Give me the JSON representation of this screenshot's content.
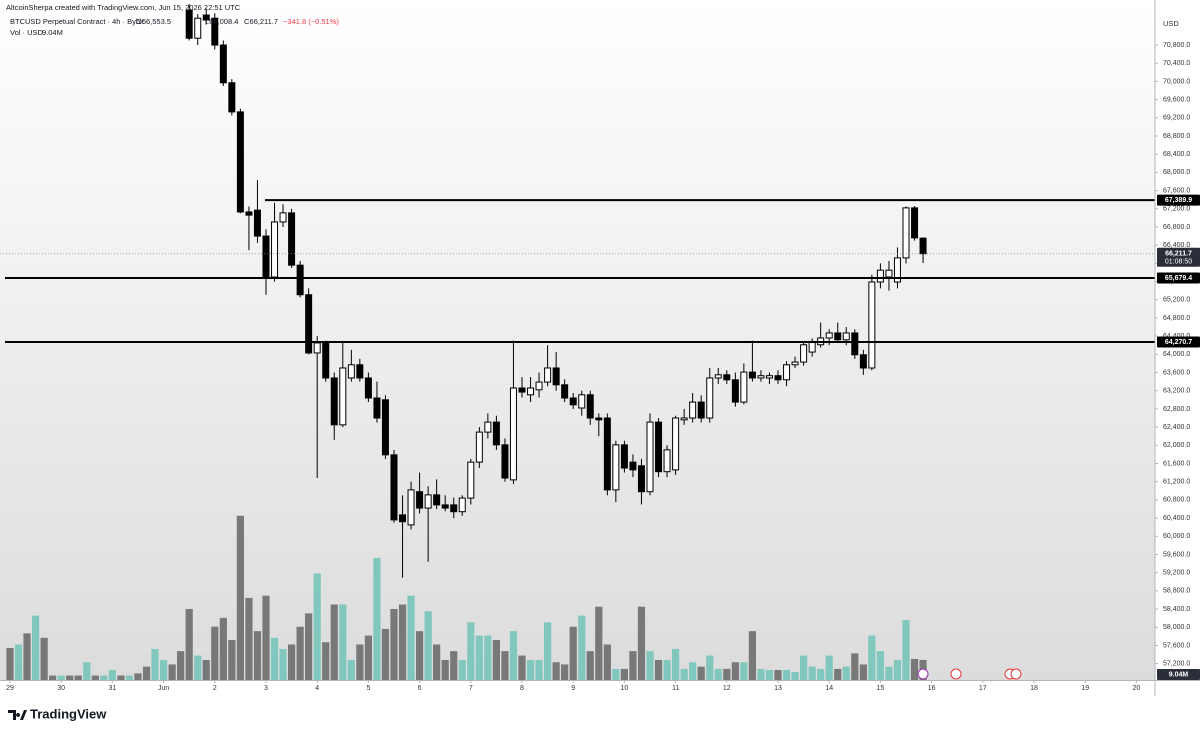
{
  "header": {
    "credit": "AltcoinSherpa created with TradingView.com, Jun 15, 2026 22:51 UTC",
    "symbol": "BTCUSD Perpetual Contract · 4h · Bybit",
    "open": "O66,553.5",
    "low": "L66,008.4",
    "close": "C66,211.7",
    "change": "−341.8 (−0.51%)",
    "volume_title": "Vol · USD",
    "currency": "USD"
  },
  "footer": {
    "brand": "TradingView"
  },
  "chart_data": {
    "type": "candlestick",
    "x": [
      0,
      0.167,
      0.333,
      0.5,
      0.667,
      0.833,
      1,
      1.167,
      1.333,
      1.5,
      1.667,
      1.833,
      2,
      2.167,
      2.333,
      2.5,
      2.667,
      2.833,
      3,
      3.167,
      3.333,
      3.5,
      3.667,
      3.833,
      4,
      4.167,
      4.333,
      4.5,
      4.667,
      4.833,
      5,
      5.167,
      5.333,
      5.5,
      5.667,
      5.833,
      6,
      6.167,
      6.333,
      6.5,
      6.667,
      6.833,
      7,
      7.167,
      7.333,
      7.5,
      7.667,
      7.833,
      8,
      8.167,
      8.333,
      8.5,
      8.667,
      8.833,
      9,
      9.167,
      9.333,
      9.5,
      9.667,
      9.833,
      10,
      10.167,
      10.333,
      10.5,
      10.667,
      10.833,
      11,
      11.167,
      11.333,
      11.5,
      11.667,
      11.833,
      12,
      12.167,
      12.333,
      12.5,
      12.667,
      12.833,
      13,
      13.167,
      13.333,
      13.5,
      13.667,
      13.833,
      14,
      14.167,
      14.333,
      14.5,
      14.667,
      14.833,
      15,
      15.167,
      15.333,
      15.5,
      15.667,
      15.833,
      16,
      16.167,
      16.333,
      16.5,
      16.667,
      16.833,
      17,
      17.167,
      17.333,
      17.5,
      17.667,
      17.833
    ],
    "open": [
      null,
      null,
      null,
      null,
      null,
      null,
      null,
      null,
      null,
      null,
      null,
      null,
      null,
      null,
      null,
      null,
      null,
      null,
      null,
      null,
      null,
      71570,
      70950,
      71460,
      71390,
      70800,
      69970,
      69330,
      67130,
      67170,
      66600,
      65700,
      66910,
      67110,
      65960,
      65310,
      64030,
      64250,
      63480,
      62450,
      63480,
      63770,
      63480,
      63040,
      63000,
      61790,
      60470,
      60250,
      60980,
      60620,
      60910,
      60690,
      60690,
      60540,
      60840,
      61630,
      62290,
      62510,
      62010,
      61240,
      63260,
      63110,
      63220,
      63390,
      63700,
      63330,
      63040,
      62820,
      63110,
      62600,
      62600,
      61020,
      62010,
      61630,
      61550,
      60980,
      62510,
      61420,
      61460,
      62560,
      62600,
      62950,
      62600,
      63480,
      63550,
      63440,
      62950,
      63610,
      63480,
      63480,
      63530,
      63440,
      63770,
      63830,
      64050,
      64210,
      64360,
      64470,
      64320,
      64470,
      63990,
      63700,
      65590,
      65700,
      65590,
      66120,
      67220,
      66553.5
    ],
    "high": [
      null,
      null,
      null,
      null,
      null,
      null,
      null,
      null,
      null,
      null,
      null,
      null,
      null,
      null,
      null,
      null,
      null,
      null,
      null,
      null,
      null,
      71700,
      71480,
      71600,
      71500,
      70900,
      70050,
      69400,
      67250,
      67830,
      66750,
      67330,
      67300,
      67200,
      66050,
      65450,
      64400,
      64300,
      63600,
      64250,
      64100,
      63900,
      63600,
      63400,
      63100,
      61900,
      60900,
      61200,
      61400,
      61100,
      61250,
      60900,
      60850,
      60900,
      61700,
      62400,
      62700,
      62650,
      62150,
      64300,
      63500,
      63500,
      63600,
      64200,
      64050,
      63450,
      63150,
      63200,
      63200,
      62700,
      62700,
      62100,
      62100,
      61800,
      61700,
      62700,
      62600,
      62000,
      62650,
      62800,
      63150,
      63100,
      63700,
      63700,
      63650,
      63600,
      63800,
      64300,
      63650,
      63600,
      63650,
      63850,
      63950,
      64250,
      64350,
      64700,
      64550,
      64700,
      64600,
      64550,
      64100,
      65750,
      66000,
      66050,
      66350,
      67250,
      67260,
      66570
    ],
    "low": [
      null,
      null,
      null,
      null,
      null,
      null,
      null,
      null,
      null,
      null,
      null,
      null,
      null,
      null,
      null,
      null,
      null,
      null,
      null,
      null,
      null,
      70900,
      70800,
      71250,
      70700,
      69900,
      69250,
      67100,
      66290,
      66450,
      65310,
      65600,
      66800,
      65900,
      65250,
      64000,
      61280,
      63400,
      62120,
      62400,
      63400,
      63400,
      62950,
      62500,
      61700,
      60300,
      59090,
      60150,
      60500,
      59440,
      60600,
      60550,
      60400,
      60450,
      60700,
      61500,
      62150,
      61900,
      61200,
      61150,
      63050,
      62950,
      63050,
      63300,
      63200,
      62950,
      62800,
      62650,
      62450,
      62200,
      60900,
      60750,
      61400,
      61300,
      60700,
      60900,
      61300,
      61300,
      61350,
      62450,
      62500,
      62500,
      62500,
      63350,
      63350,
      62850,
      62900,
      63400,
      63400,
      63350,
      63350,
      63300,
      63700,
      63750,
      63950,
      64150,
      64200,
      64250,
      64200,
      63900,
      63550,
      63650,
      65450,
      65400,
      65450,
      66000,
      66500,
      66008.4
    ],
    "close": [
      null,
      null,
      null,
      null,
      null,
      null,
      null,
      null,
      null,
      null,
      null,
      null,
      null,
      null,
      null,
      null,
      null,
      null,
      null,
      null,
      null,
      70950,
      71390,
      71350,
      70800,
      69970,
      69330,
      67130,
      67060,
      66600,
      65700,
      66910,
      67110,
      65960,
      65310,
      64030,
      64250,
      63480,
      62450,
      63700,
      63770,
      63480,
      63040,
      62600,
      61790,
      60360,
      60320,
      61020,
      60620,
      60910,
      60690,
      60620,
      60540,
      60840,
      61630,
      62290,
      62510,
      62010,
      61280,
      63260,
      63170,
      63260,
      63390,
      63700,
      63330,
      63040,
      62890,
      63110,
      62600,
      62560,
      61020,
      62010,
      61500,
      61460,
      60980,
      62510,
      61420,
      61900,
      62600,
      62600,
      62950,
      62600,
      63480,
      63550,
      63440,
      62950,
      63610,
      63480,
      63530,
      63530,
      63440,
      63770,
      63830,
      64210,
      64270,
      64360,
      64470,
      64320,
      64470,
      63990,
      63700,
      65590,
      65850,
      65850,
      66120,
      67220,
      66560,
      66211.7
    ],
    "up_color": "#ffffff",
    "down_color": "#000000",
    "volume": {
      "values": [
        14.4,
        16,
        21,
        29,
        19,
        2,
        2,
        2,
        2,
        8,
        2,
        2,
        4.5,
        2,
        2,
        3,
        6,
        14,
        9,
        7,
        13,
        32,
        11,
        9,
        24,
        28,
        18,
        74,
        37,
        22,
        38,
        19,
        14,
        16,
        24,
        30,
        48,
        17,
        34,
        34,
        9,
        16,
        20,
        55,
        23,
        32,
        34,
        38,
        22,
        31,
        16,
        9,
        13,
        9,
        26,
        20,
        20,
        18,
        13,
        22,
        11,
        9,
        9,
        26,
        8,
        7,
        24,
        29,
        13,
        33,
        16,
        5,
        5,
        13,
        33,
        13,
        9,
        9,
        14,
        5,
        8,
        6,
        11,
        5,
        5,
        8,
        8,
        22,
        5,
        4.5,
        4.5,
        4.5,
        3.6,
        11,
        6,
        5,
        11,
        5,
        6,
        12,
        7,
        20,
        13,
        6,
        9,
        27,
        9.5,
        9.04
      ],
      "colors": [
        "#787878",
        "#80c8be",
        "#787878",
        "#80c8be",
        "#787878",
        "#787878",
        "#80c8be",
        "#787878",
        "#787878",
        "#80c8be",
        "#787878",
        "#80c8be",
        "#80c8be",
        "#787878",
        "#80c8be",
        "#787878",
        "#787878",
        "#80c8be",
        "#80c8be",
        "#787878",
        "#787878",
        "#787878",
        "#80c8be",
        "#787878",
        "#787878",
        "#787878",
        "#787878",
        "#787878",
        "#787878",
        "#787878",
        "#787878",
        "#80c8be",
        "#80c8be",
        "#787878",
        "#787878",
        "#787878",
        "#80c8be",
        "#787878",
        "#787878",
        "#80c8be",
        "#80c8be",
        "#787878",
        "#787878",
        "#80c8be",
        "#787878",
        "#787878",
        "#787878",
        "#80c8be",
        "#787878",
        "#80c8be",
        "#787878",
        "#787878",
        "#787878",
        "#80c8be",
        "#80c8be",
        "#80c8be",
        "#80c8be",
        "#787878",
        "#787878",
        "#80c8be",
        "#787878",
        "#80c8be",
        "#80c8be",
        "#80c8be",
        "#787878",
        "#787878",
        "#787878",
        "#80c8be",
        "#787878",
        "#787878",
        "#787878",
        "#80c8be",
        "#787878",
        "#787878",
        "#787878",
        "#80c8be",
        "#787878",
        "#80c8be",
        "#80c8be",
        "#80c8be",
        "#80c8be",
        "#787878",
        "#80c8be",
        "#80c8be",
        "#787878",
        "#787878",
        "#80c8be",
        "#787878",
        "#80c8be",
        "#80c8be",
        "#787878",
        "#80c8be",
        "#80c8be",
        "#80c8be",
        "#80c8be",
        "#80c8be",
        "#80c8be",
        "#787878",
        "#80c8be",
        "#787878",
        "#787878",
        "#80c8be",
        "#80c8be",
        "#80c8be",
        "#80c8be",
        "#80c8be",
        "#787878",
        "#787878"
      ],
      "last_label": "9.04M"
    },
    "levels": [
      {
        "value": 67389.9,
        "label": "67,389.9",
        "from": 4.98
      },
      {
        "value": 65679.4,
        "label": "65,679.4"
      },
      {
        "value": 64270.7,
        "label": "64,270.7"
      }
    ],
    "last_price": {
      "value": 66211.7,
      "label": "66,211.7",
      "countdown": "01:08:50"
    },
    "xlim": [
      -0.195,
      22.363
    ],
    "xticks": [
      {
        "value": 0,
        "label": "29"
      },
      {
        "value": 1,
        "label": "30"
      },
      {
        "value": 2,
        "label": "31"
      },
      {
        "value": 3,
        "label": "Jun"
      },
      {
        "value": 4,
        "label": "2"
      },
      {
        "value": 5,
        "label": "3"
      },
      {
        "value": 6,
        "label": "4"
      },
      {
        "value": 7,
        "label": "5"
      },
      {
        "value": 8,
        "label": "6"
      },
      {
        "value": 9,
        "label": "7"
      },
      {
        "value": 10,
        "label": "8"
      },
      {
        "value": 11,
        "label": "9"
      },
      {
        "value": 12,
        "label": "10"
      },
      {
        "value": 13,
        "label": "11"
      },
      {
        "value": 14,
        "label": "12"
      },
      {
        "value": 15,
        "label": "13"
      },
      {
        "value": 16,
        "label": "14"
      },
      {
        "value": 17,
        "label": "15"
      },
      {
        "value": 18,
        "label": "16"
      },
      {
        "value": 19,
        "label": "17"
      },
      {
        "value": 20,
        "label": "18"
      },
      {
        "value": 21,
        "label": "19"
      },
      {
        "value": 22,
        "label": "20"
      }
    ],
    "ylim": [
      56840,
      71790
    ],
    "yticks": [
      {
        "value": 57200,
        "label": "57,200.0"
      },
      {
        "value": 57600,
        "label": "57,600.0"
      },
      {
        "value": 58000,
        "label": "58,000.0"
      },
      {
        "value": 58400,
        "label": "58,400.0"
      },
      {
        "value": 58800,
        "label": "58,800.0"
      },
      {
        "value": 59200,
        "label": "59,200.0"
      },
      {
        "value": 59600,
        "label": "59,600.0"
      },
      {
        "value": 60000,
        "label": "60,000.0"
      },
      {
        "value": 60400,
        "label": "60,400.0"
      },
      {
        "value": 60800,
        "label": "60,800.0"
      },
      {
        "value": 61200,
        "label": "61,200.0"
      },
      {
        "value": 61600,
        "label": "61,600.0"
      },
      {
        "value": 62000,
        "label": "62,000.0"
      },
      {
        "value": 62400,
        "label": "62,400.0"
      },
      {
        "value": 62800,
        "label": "62,800.0"
      },
      {
        "value": 63200,
        "label": "63,200.0"
      },
      {
        "value": 63600,
        "label": "63,600.0"
      },
      {
        "value": 64000,
        "label": "64,000.0"
      },
      {
        "value": 64400,
        "label": "64,400.0"
      },
      {
        "value": 64800,
        "label": "64,800.0"
      },
      {
        "value": 65200,
        "label": "65,200.0"
      },
      {
        "value": 65600,
        "label": "65,600.0"
      },
      {
        "value": 66000,
        "label": "66,000.0"
      },
      {
        "value": 66400,
        "label": "66,400.0"
      },
      {
        "value": 66800,
        "label": "66,800.0"
      },
      {
        "value": 67200,
        "label": "67,200.0"
      },
      {
        "value": 67600,
        "label": "67,600.0"
      },
      {
        "value": 68000,
        "label": "68,000.0"
      },
      {
        "value": 68400,
        "label": "68,400.0"
      },
      {
        "value": 68800,
        "label": "68,800.0"
      },
      {
        "value": 69200,
        "label": "69,200.0"
      },
      {
        "value": 69600,
        "label": "69,600.0"
      },
      {
        "value": 70000,
        "label": "70,000.0"
      },
      {
        "value": 70400,
        "label": "70,400.0"
      },
      {
        "value": 70800,
        "label": "70,800.0"
      }
    ]
  }
}
